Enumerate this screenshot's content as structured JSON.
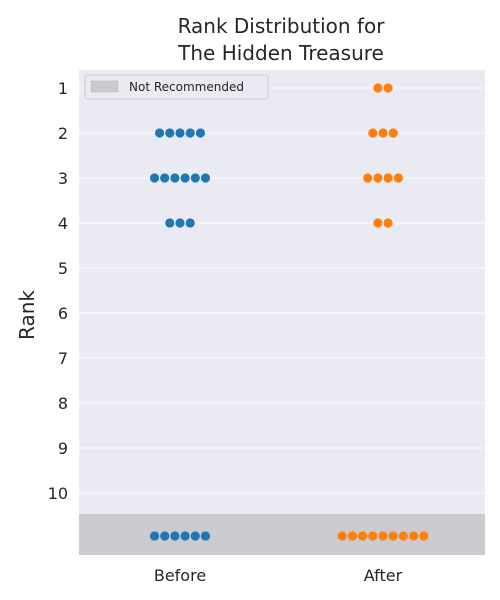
{
  "chart_data": {
    "type": "scatter",
    "title_lines": [
      "Rank Distribution for",
      "The Hidden Treasure"
    ],
    "ylabel": "Rank",
    "xlabel": "",
    "categories": [
      "Before",
      "After"
    ],
    "y_ticks": [
      "1",
      "2",
      "3",
      "4",
      "5",
      "6",
      "7",
      "8",
      "9",
      "10"
    ],
    "legend": {
      "label": "Not Recommended",
      "placement": "top-left"
    },
    "series": [
      {
        "category": "Before",
        "color": "#1f77b4",
        "counts": {
          "1": 0,
          "2": 5,
          "3": 6,
          "4": 3,
          "Not Recommended": 6
        }
      },
      {
        "category": "After",
        "color": "#ff7f0e",
        "counts": {
          "1": 2,
          "2": 3,
          "3": 4,
          "4": 2,
          "Not Recommended": 9
        }
      }
    ],
    "background_color": "#eaeaf2",
    "not_recommended_color": "#cbcace",
    "grid": true
  }
}
